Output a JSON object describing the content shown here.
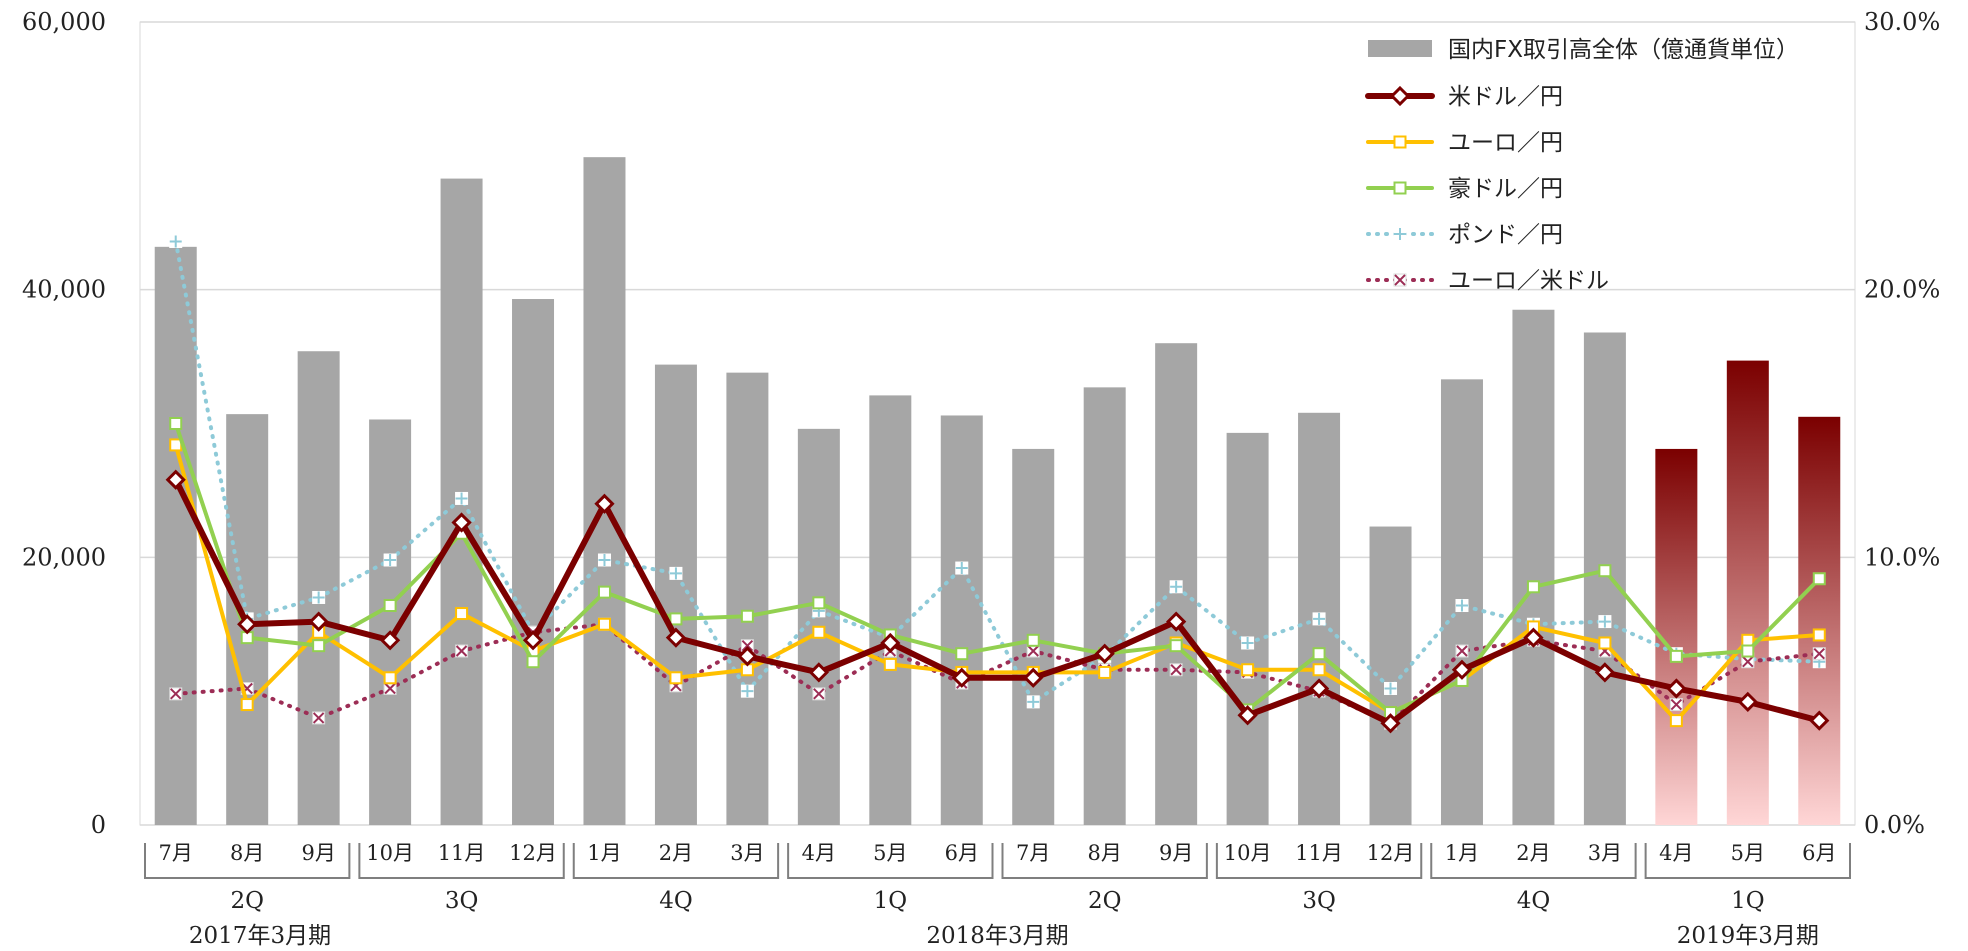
{
  "chart_data": {
    "type": "bar",
    "y_left": {
      "ylim": [
        0,
        60000
      ],
      "ticks": [
        "0",
        "20,000",
        "40,000",
        "60,000"
      ]
    },
    "y_right": {
      "ylim": [
        0,
        30
      ],
      "ticks": [
        "0.0%",
        "10.0%",
        "20.0%",
        "30.0%"
      ]
    },
    "grid": true,
    "legend_position": "top-right",
    "categories": [
      "7月",
      "8月",
      "9月",
      "10月",
      "11月",
      "12月",
      "1月",
      "2月",
      "3月",
      "4月",
      "5月",
      "6月",
      "7月",
      "8月",
      "9月",
      "10月",
      "11月",
      "12月",
      "1月",
      "2月",
      "3月",
      "4月",
      "5月",
      "6月"
    ],
    "quarters": [
      {
        "label": "2Q",
        "from": 0,
        "to": 2
      },
      {
        "label": "3Q",
        "from": 3,
        "to": 5
      },
      {
        "label": "4Q",
        "from": 6,
        "to": 8
      },
      {
        "label": "1Q",
        "from": 9,
        "to": 11
      },
      {
        "label": "2Q",
        "from": 12,
        "to": 14
      },
      {
        "label": "3Q",
        "from": 15,
        "to": 17
      },
      {
        "label": "4Q",
        "from": 18,
        "to": 20
      },
      {
        "label": "1Q",
        "from": 21,
        "to": 23
      }
    ],
    "fiscal_years": [
      {
        "label": "2017年3月期",
        "from": 0,
        "to": 2
      },
      {
        "label": "2018年3月期",
        "from": 3,
        "to": 20
      },
      {
        "label": "2019年3月期",
        "from": 21,
        "to": 23
      }
    ],
    "bars": {
      "name": "国内FX取引高全体（億通貨単位）",
      "color": "#a6a6a6",
      "highlight_from_index": 21,
      "highlight_colors": [
        "#7b0000",
        "#ffd6d6"
      ],
      "values": [
        43200,
        30700,
        35400,
        30300,
        48300,
        39300,
        49900,
        34400,
        33800,
        29600,
        32100,
        30600,
        28100,
        32700,
        36000,
        29300,
        30800,
        22300,
        33300,
        38500,
        36800,
        28100,
        34700,
        30500
      ]
    },
    "series": [
      {
        "name": "米ドル／円",
        "color": "#7b0000",
        "marker": "diamond",
        "style": "solid",
        "width": 6,
        "values": [
          12.9,
          7.5,
          7.6,
          6.9,
          11.3,
          6.9,
          12.0,
          7.0,
          6.3,
          5.7,
          6.8,
          5.5,
          5.5,
          6.4,
          7.6,
          4.1,
          5.1,
          3.8,
          5.8,
          7.0,
          5.7,
          5.1,
          4.6,
          3.9
        ]
      },
      {
        "name": "ユーロ／円",
        "color": "#ffc000",
        "marker": "square",
        "style": "solid",
        "width": 4,
        "values": [
          14.2,
          4.5,
          7.2,
          5.5,
          7.9,
          6.5,
          7.5,
          5.5,
          5.8,
          7.2,
          6.0,
          5.7,
          5.7,
          5.7,
          6.8,
          5.8,
          5.8,
          4.2,
          5.4,
          7.4,
          6.8,
          3.9,
          6.9,
          7.1
        ]
      },
      {
        "name": "豪ドル／円",
        "color": "#92d050",
        "marker": "square",
        "style": "solid",
        "width": 4,
        "values": [
          15.0,
          7.0,
          6.7,
          8.2,
          10.9,
          6.1,
          8.7,
          7.7,
          7.8,
          8.3,
          7.1,
          6.4,
          6.9,
          6.4,
          6.7,
          4.3,
          6.4,
          4.2,
          5.4,
          8.9,
          9.5,
          6.3,
          6.5,
          9.2
        ]
      },
      {
        "name": "ポンド／円",
        "color": "#8ecad8",
        "marker": "plus",
        "style": "dotted",
        "width": 4,
        "values": [
          21.8,
          7.7,
          8.5,
          9.9,
          12.2,
          7.2,
          9.9,
          9.4,
          5.0,
          8.0,
          7.0,
          9.6,
          4.6,
          6.3,
          8.9,
          6.8,
          7.7,
          5.1,
          8.2,
          7.5,
          7.6,
          6.4,
          6.2,
          6.1
        ]
      },
      {
        "name": "ユーロ／米ドル",
        "color": "#9c2d55",
        "marker": "x",
        "style": "dotted",
        "width": 4,
        "values": [
          4.9,
          5.1,
          4.0,
          5.1,
          6.5,
          7.2,
          7.5,
          5.2,
          6.7,
          4.9,
          6.5,
          5.3,
          6.5,
          5.8,
          5.8,
          5.7,
          5.0,
          3.8,
          6.5,
          6.9,
          6.5,
          4.5,
          6.1,
          6.4
        ]
      }
    ]
  }
}
